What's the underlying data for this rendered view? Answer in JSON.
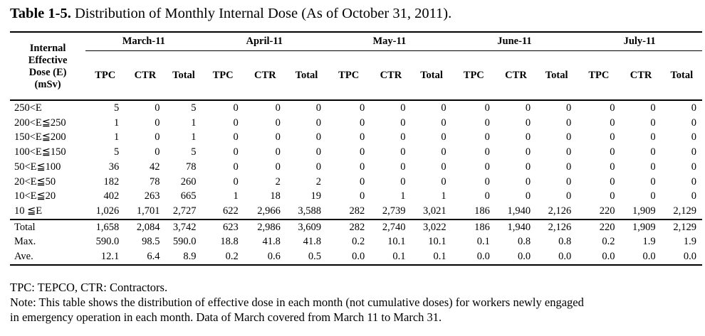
{
  "caption": {
    "bold": "Table 1-5.",
    "rest": " Distribution of Monthly Internal Dose (As of October 31, 2011)."
  },
  "row_header": [
    "Internal",
    "Effective",
    "Dose (E)",
    "(mSv)"
  ],
  "months": [
    "March-11",
    "April-11",
    "May-11",
    "June-11",
    "July-11"
  ],
  "subcols": [
    "TPC",
    "CTR",
    "Total"
  ],
  "rows": [
    {
      "label": "250<E",
      "values": [
        "5",
        "0",
        "5",
        "0",
        "0",
        "0",
        "0",
        "0",
        "0",
        "0",
        "0",
        "0",
        "0",
        "0",
        "0"
      ]
    },
    {
      "label": "200<E≦250",
      "values": [
        "1",
        "0",
        "1",
        "0",
        "0",
        "0",
        "0",
        "0",
        "0",
        "0",
        "0",
        "0",
        "0",
        "0",
        "0"
      ]
    },
    {
      "label": "150<E≦200",
      "values": [
        "1",
        "0",
        "1",
        "0",
        "0",
        "0",
        "0",
        "0",
        "0",
        "0",
        "0",
        "0",
        "0",
        "0",
        "0"
      ]
    },
    {
      "label": "100<E≦150",
      "values": [
        "5",
        "0",
        "5",
        "0",
        "0",
        "0",
        "0",
        "0",
        "0",
        "0",
        "0",
        "0",
        "0",
        "0",
        "0"
      ]
    },
    {
      "label": "50<E≦100",
      "values": [
        "36",
        "42",
        "78",
        "0",
        "0",
        "0",
        "0",
        "0",
        "0",
        "0",
        "0",
        "0",
        "0",
        "0",
        "0"
      ]
    },
    {
      "label": "20<E≦50",
      "values": [
        "182",
        "78",
        "260",
        "0",
        "2",
        "2",
        "0",
        "0",
        "0",
        "0",
        "0",
        "0",
        "0",
        "0",
        "0"
      ]
    },
    {
      "label": "10<E≦20",
      "values": [
        "402",
        "263",
        "665",
        "1",
        "18",
        "19",
        "0",
        "1",
        "1",
        "0",
        "0",
        "0",
        "0",
        "0",
        "0"
      ]
    },
    {
      "label": "10 ≦E",
      "values": [
        "1,026",
        "1,701",
        "2,727",
        "622",
        "2,966",
        "3,588",
        "282",
        "2,739",
        "3,021",
        "186",
        "1,940",
        "2,126",
        "220",
        "1,909",
        "2,129"
      ]
    }
  ],
  "summary_rows": [
    {
      "label": "Total",
      "values": [
        "1,658",
        "2,084",
        "3,742",
        "623",
        "2,986",
        "3,609",
        "282",
        "2,740",
        "3,022",
        "186",
        "1,940",
        "2,126",
        "220",
        "1,909",
        "2,129"
      ]
    },
    {
      "label": "Max.",
      "values": [
        "590.0",
        "98.5",
        "590.0",
        "18.8",
        "41.8",
        "41.8",
        "0.2",
        "10.1",
        "10.1",
        "0.1",
        "0.8",
        "0.8",
        "0.2",
        "1.9",
        "1.9"
      ]
    },
    {
      "label": "Ave.",
      "values": [
        "12.1",
        "6.4",
        "8.9",
        "0.2",
        "0.6",
        "0.5",
        "0.0",
        "0.1",
        "0.1",
        "0.0",
        "0.0",
        "0.0",
        "0.0",
        "0.0",
        "0.0"
      ]
    }
  ],
  "notes": {
    "legend": "TPC: TEPCO, CTR: Contractors.",
    "line1": "Note: This table shows the distribution of effective dose in each month (not cumulative doses) for workers newly engaged",
    "line2": "in emergency operation in each month.  Data of March covered from March 11 to March 31."
  }
}
